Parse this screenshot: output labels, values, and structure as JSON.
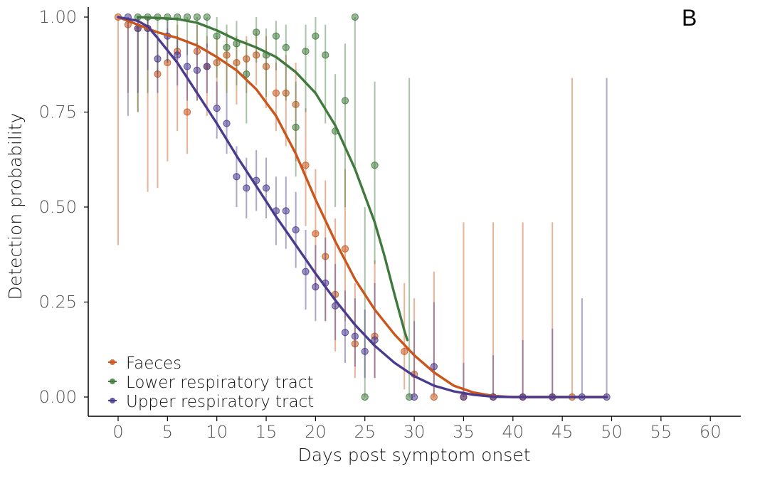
{
  "chart_data": {
    "type": "scatter",
    "panel_label": "B",
    "xlabel": "Days post symptom onset",
    "ylabel": "Detection probability",
    "xlim": [
      -3,
      63
    ],
    "ylim": [
      -0.05,
      1.0
    ],
    "xticks": [
      0,
      5,
      10,
      15,
      20,
      25,
      30,
      35,
      40,
      45,
      50,
      55,
      60
    ],
    "yticks": [
      0.0,
      0.25,
      0.5,
      0.75,
      1.0
    ],
    "xtick_labels": [
      "0",
      "5",
      "10",
      "15",
      "20",
      "25",
      "30",
      "35",
      "40",
      "45",
      "50",
      "55",
      "60"
    ],
    "ytick_labels": [
      "0.00",
      "0.25",
      "0.50",
      "0.75",
      "1.00"
    ],
    "legend_position": "bottom-left",
    "series": [
      {
        "name": "Faeces",
        "color": "#c9561c",
        "points": [
          {
            "x": 0,
            "y": 1.0,
            "lo": 0.4,
            "hi": 1.0
          },
          {
            "x": 1,
            "y": 0.98,
            "lo": 0.8,
            "hi": 1.0
          },
          {
            "x": 2,
            "y": 0.97,
            "lo": 0.75,
            "hi": 1.0
          },
          {
            "x": 3,
            "y": 0.97,
            "lo": 0.54,
            "hi": 1.0
          },
          {
            "x": 4,
            "y": 0.85,
            "lo": 0.55,
            "hi": 0.95
          },
          {
            "x": 5,
            "y": 0.88,
            "lo": 0.62,
            "hi": 0.97
          },
          {
            "x": 6,
            "y": 0.91,
            "lo": 0.7,
            "hi": 0.98
          },
          {
            "x": 7,
            "y": 0.75,
            "lo": 0.64,
            "hi": 0.86
          },
          {
            "x": 8,
            "y": 0.91,
            "lo": 0.78,
            "hi": 0.98
          },
          {
            "x": 9,
            "y": 0.87,
            "lo": 0.74,
            "hi": 0.95
          },
          {
            "x": 10,
            "y": 0.88,
            "lo": 0.77,
            "hi": 0.95
          },
          {
            "x": 11,
            "y": 0.9,
            "lo": 0.8,
            "hi": 0.96
          },
          {
            "x": 12,
            "y": 0.88,
            "lo": 0.77,
            "hi": 0.95
          },
          {
            "x": 13,
            "y": 0.89,
            "lo": 0.8,
            "hi": 0.95
          },
          {
            "x": 14,
            "y": 0.9,
            "lo": 0.82,
            "hi": 0.96
          },
          {
            "x": 15,
            "y": 0.87,
            "lo": 0.76,
            "hi": 0.95
          },
          {
            "x": 16,
            "y": 0.8,
            "lo": 0.7,
            "hi": 0.88
          },
          {
            "x": 17,
            "y": 0.8,
            "lo": 0.66,
            "hi": 0.9
          },
          {
            "x": 18,
            "y": 0.77,
            "lo": 0.62,
            "hi": 0.88
          },
          {
            "x": 19,
            "y": 0.61,
            "lo": 0.45,
            "hi": 0.76
          },
          {
            "x": 20,
            "y": 0.43,
            "lo": 0.28,
            "hi": 0.6
          },
          {
            "x": 21,
            "y": 0.37,
            "lo": 0.2,
            "hi": 0.57
          },
          {
            "x": 22,
            "y": 0.27,
            "lo": 0.12,
            "hi": 0.47
          },
          {
            "x": 23,
            "y": 0.39,
            "lo": 0.2,
            "hi": 0.6
          },
          {
            "x": 24,
            "y": 0.14,
            "lo": 0.05,
            "hi": 0.3
          },
          {
            "x": 26,
            "y": 0.16,
            "lo": 0.05,
            "hi": 0.36
          },
          {
            "x": 29,
            "y": 0.12,
            "lo": 0.02,
            "hi": 0.3
          },
          {
            "x": 30,
            "y": 0.06,
            "lo": 0.01,
            "hi": 0.26
          },
          {
            "x": 32,
            "y": 0.0,
            "lo": 0.0,
            "hi": 0.33
          },
          {
            "x": 35,
            "y": 0.0,
            "lo": 0.0,
            "hi": 0.46
          },
          {
            "x": 38,
            "y": 0.0,
            "lo": 0.0,
            "hi": 0.46
          },
          {
            "x": 41,
            "y": 0.0,
            "lo": 0.0,
            "hi": 0.46
          },
          {
            "x": 44,
            "y": 0.0,
            "lo": 0.0,
            "hi": 0.46
          },
          {
            "x": 46,
            "y": 0.0,
            "lo": 0.0,
            "hi": 0.84
          }
        ],
        "curve": [
          [
            0,
            1.0
          ],
          [
            2,
            0.98
          ],
          [
            4,
            0.96
          ],
          [
            6,
            0.945
          ],
          [
            8,
            0.925
          ],
          [
            10,
            0.895
          ],
          [
            12,
            0.86
          ],
          [
            14,
            0.81
          ],
          [
            16,
            0.74
          ],
          [
            18,
            0.64
          ],
          [
            20,
            0.52
          ],
          [
            22,
            0.41
          ],
          [
            24,
            0.31
          ],
          [
            26,
            0.23
          ],
          [
            28,
            0.165
          ],
          [
            30,
            0.11
          ],
          [
            32,
            0.065
          ],
          [
            34,
            0.03
          ],
          [
            36,
            0.012
          ],
          [
            38,
            0.003
          ],
          [
            40,
            0.0
          ],
          [
            49.5,
            0.0
          ]
        ]
      },
      {
        "name": "Lower respiratory tract",
        "color": "#3f7a3c",
        "points": [
          {
            "x": 2,
            "y": 1.0,
            "lo": 0.75,
            "hi": 1.0
          },
          {
            "x": 3,
            "y": 1.0,
            "lo": 0.8,
            "hi": 1.0
          },
          {
            "x": 4,
            "y": 1.0,
            "lo": 0.85,
            "hi": 1.0
          },
          {
            "x": 5,
            "y": 1.0,
            "lo": 0.88,
            "hi": 1.0
          },
          {
            "x": 6,
            "y": 1.0,
            "lo": 0.9,
            "hi": 1.0
          },
          {
            "x": 7,
            "y": 1.0,
            "lo": 0.9,
            "hi": 1.0
          },
          {
            "x": 8,
            "y": 1.0,
            "lo": 0.92,
            "hi": 1.0
          },
          {
            "x": 9,
            "y": 1.0,
            "lo": 0.92,
            "hi": 1.0
          },
          {
            "x": 10,
            "y": 0.95,
            "lo": 0.84,
            "hi": 1.0
          },
          {
            "x": 11,
            "y": 0.92,
            "lo": 0.8,
            "hi": 0.98
          },
          {
            "x": 12,
            "y": 0.93,
            "lo": 0.82,
            "hi": 0.99
          },
          {
            "x": 13,
            "y": 0.85,
            "lo": 0.72,
            "hi": 0.94
          },
          {
            "x": 14,
            "y": 0.96,
            "lo": 0.88,
            "hi": 1.0
          },
          {
            "x": 15,
            "y": 0.9,
            "lo": 0.79,
            "hi": 0.97
          },
          {
            "x": 16,
            "y": 0.95,
            "lo": 0.86,
            "hi": 0.99
          },
          {
            "x": 17,
            "y": 0.92,
            "lo": 0.78,
            "hi": 0.98
          },
          {
            "x": 18,
            "y": 0.71,
            "lo": 0.58,
            "hi": 0.83
          },
          {
            "x": 19,
            "y": 0.91,
            "lo": 0.75,
            "hi": 0.98
          },
          {
            "x": 20,
            "y": 0.95,
            "lo": 0.8,
            "hi": 1.0
          },
          {
            "x": 21,
            "y": 0.9,
            "lo": 0.72,
            "hi": 0.98
          },
          {
            "x": 22,
            "y": 0.7,
            "lo": 0.5,
            "hi": 0.85
          },
          {
            "x": 23,
            "y": 0.78,
            "lo": 0.5,
            "hi": 0.93
          },
          {
            "x": 24,
            "y": 1.0,
            "lo": 0.6,
            "hi": 1.0
          },
          {
            "x": 25,
            "y": 0.0,
            "lo": 0.0,
            "hi": 0.5
          },
          {
            "x": 26,
            "y": 0.61,
            "lo": 0.35,
            "hi": 0.83
          },
          {
            "x": 29.5,
            "y": 0.0,
            "lo": 0.0,
            "hi": 0.84
          }
        ],
        "curve": [
          [
            2,
            1.0
          ],
          [
            6,
            0.995
          ],
          [
            8,
            0.985
          ],
          [
            10,
            0.965
          ],
          [
            12,
            0.94
          ],
          [
            14,
            0.92
          ],
          [
            16,
            0.895
          ],
          [
            18,
            0.855
          ],
          [
            20,
            0.8
          ],
          [
            22,
            0.715
          ],
          [
            24,
            0.6
          ],
          [
            26,
            0.46
          ],
          [
            27,
            0.37
          ],
          [
            28,
            0.27
          ],
          [
            29,
            0.175
          ],
          [
            29.3,
            0.15
          ]
        ]
      },
      {
        "name": "Upper respiratory tract",
        "color": "#4b3b8f",
        "points": [
          {
            "x": 1,
            "y": 1.0,
            "lo": 0.74,
            "hi": 1.0
          },
          {
            "x": 2,
            "y": 0.97,
            "lo": 0.8,
            "hi": 1.0
          },
          {
            "x": 3,
            "y": 0.97,
            "lo": 0.86,
            "hi": 1.0
          },
          {
            "x": 4,
            "y": 0.89,
            "lo": 0.8,
            "hi": 0.95
          },
          {
            "x": 5,
            "y": 0.95,
            "lo": 0.88,
            "hi": 0.99
          },
          {
            "x": 6,
            "y": 0.9,
            "lo": 0.82,
            "hi": 0.95
          },
          {
            "x": 7,
            "y": 0.87,
            "lo": 0.78,
            "hi": 0.94
          },
          {
            "x": 8,
            "y": 0.86,
            "lo": 0.78,
            "hi": 0.93
          },
          {
            "x": 9,
            "y": 0.87,
            "lo": 0.8,
            "hi": 0.93
          },
          {
            "x": 10,
            "y": 0.76,
            "lo": 0.68,
            "hi": 0.83
          },
          {
            "x": 11,
            "y": 0.72,
            "lo": 0.64,
            "hi": 0.8
          },
          {
            "x": 12,
            "y": 0.58,
            "lo": 0.5,
            "hi": 0.66
          },
          {
            "x": 13,
            "y": 0.55,
            "lo": 0.47,
            "hi": 0.63
          },
          {
            "x": 14,
            "y": 0.57,
            "lo": 0.49,
            "hi": 0.65
          },
          {
            "x": 15,
            "y": 0.55,
            "lo": 0.47,
            "hi": 0.63
          },
          {
            "x": 16,
            "y": 0.49,
            "lo": 0.4,
            "hi": 0.58
          },
          {
            "x": 17,
            "y": 0.49,
            "lo": 0.39,
            "hi": 0.58
          },
          {
            "x": 18,
            "y": 0.44,
            "lo": 0.34,
            "hi": 0.54
          },
          {
            "x": 19,
            "y": 0.33,
            "lo": 0.23,
            "hi": 0.44
          },
          {
            "x": 20,
            "y": 0.29,
            "lo": 0.2,
            "hi": 0.4
          },
          {
            "x": 21,
            "y": 0.3,
            "lo": 0.2,
            "hi": 0.42
          },
          {
            "x": 22,
            "y": 0.24,
            "lo": 0.15,
            "hi": 0.35
          },
          {
            "x": 23,
            "y": 0.17,
            "lo": 0.09,
            "hi": 0.28
          },
          {
            "x": 24,
            "y": 0.16,
            "lo": 0.08,
            "hi": 0.26
          },
          {
            "x": 25,
            "y": 0.12,
            "lo": 0.05,
            "hi": 0.23
          },
          {
            "x": 26,
            "y": 0.15,
            "lo": 0.05,
            "hi": 0.3
          },
          {
            "x": 30,
            "y": 0.0,
            "lo": 0.0,
            "hi": 0.2
          },
          {
            "x": 32,
            "y": 0.08,
            "lo": 0.01,
            "hi": 0.25
          },
          {
            "x": 35,
            "y": 0.0,
            "lo": 0.0,
            "hi": 0.09
          },
          {
            "x": 38,
            "y": 0.0,
            "lo": 0.0,
            "hi": 0.11
          },
          {
            "x": 41,
            "y": 0.0,
            "lo": 0.0,
            "hi": 0.15
          },
          {
            "x": 44,
            "y": 0.0,
            "lo": 0.0,
            "hi": 0.18
          },
          {
            "x": 47,
            "y": 0.0,
            "lo": 0.0,
            "hi": 0.26
          },
          {
            "x": 49.5,
            "y": 0.0,
            "lo": 0.0,
            "hi": 0.84
          }
        ],
        "curve": [
          [
            0,
            1.0
          ],
          [
            2,
            0.99
          ],
          [
            3,
            0.975
          ],
          [
            4,
            0.945
          ],
          [
            6,
            0.88
          ],
          [
            8,
            0.8
          ],
          [
            10,
            0.72
          ],
          [
            12,
            0.635
          ],
          [
            14,
            0.555
          ],
          [
            16,
            0.475
          ],
          [
            18,
            0.4
          ],
          [
            20,
            0.325
          ],
          [
            22,
            0.255
          ],
          [
            24,
            0.19
          ],
          [
            26,
            0.135
          ],
          [
            28,
            0.09
          ],
          [
            30,
            0.055
          ],
          [
            32,
            0.03
          ],
          [
            34,
            0.015
          ],
          [
            36,
            0.006
          ],
          [
            38,
            0.001
          ],
          [
            40,
            0.0
          ],
          [
            49.5,
            0.0
          ]
        ]
      }
    ]
  }
}
